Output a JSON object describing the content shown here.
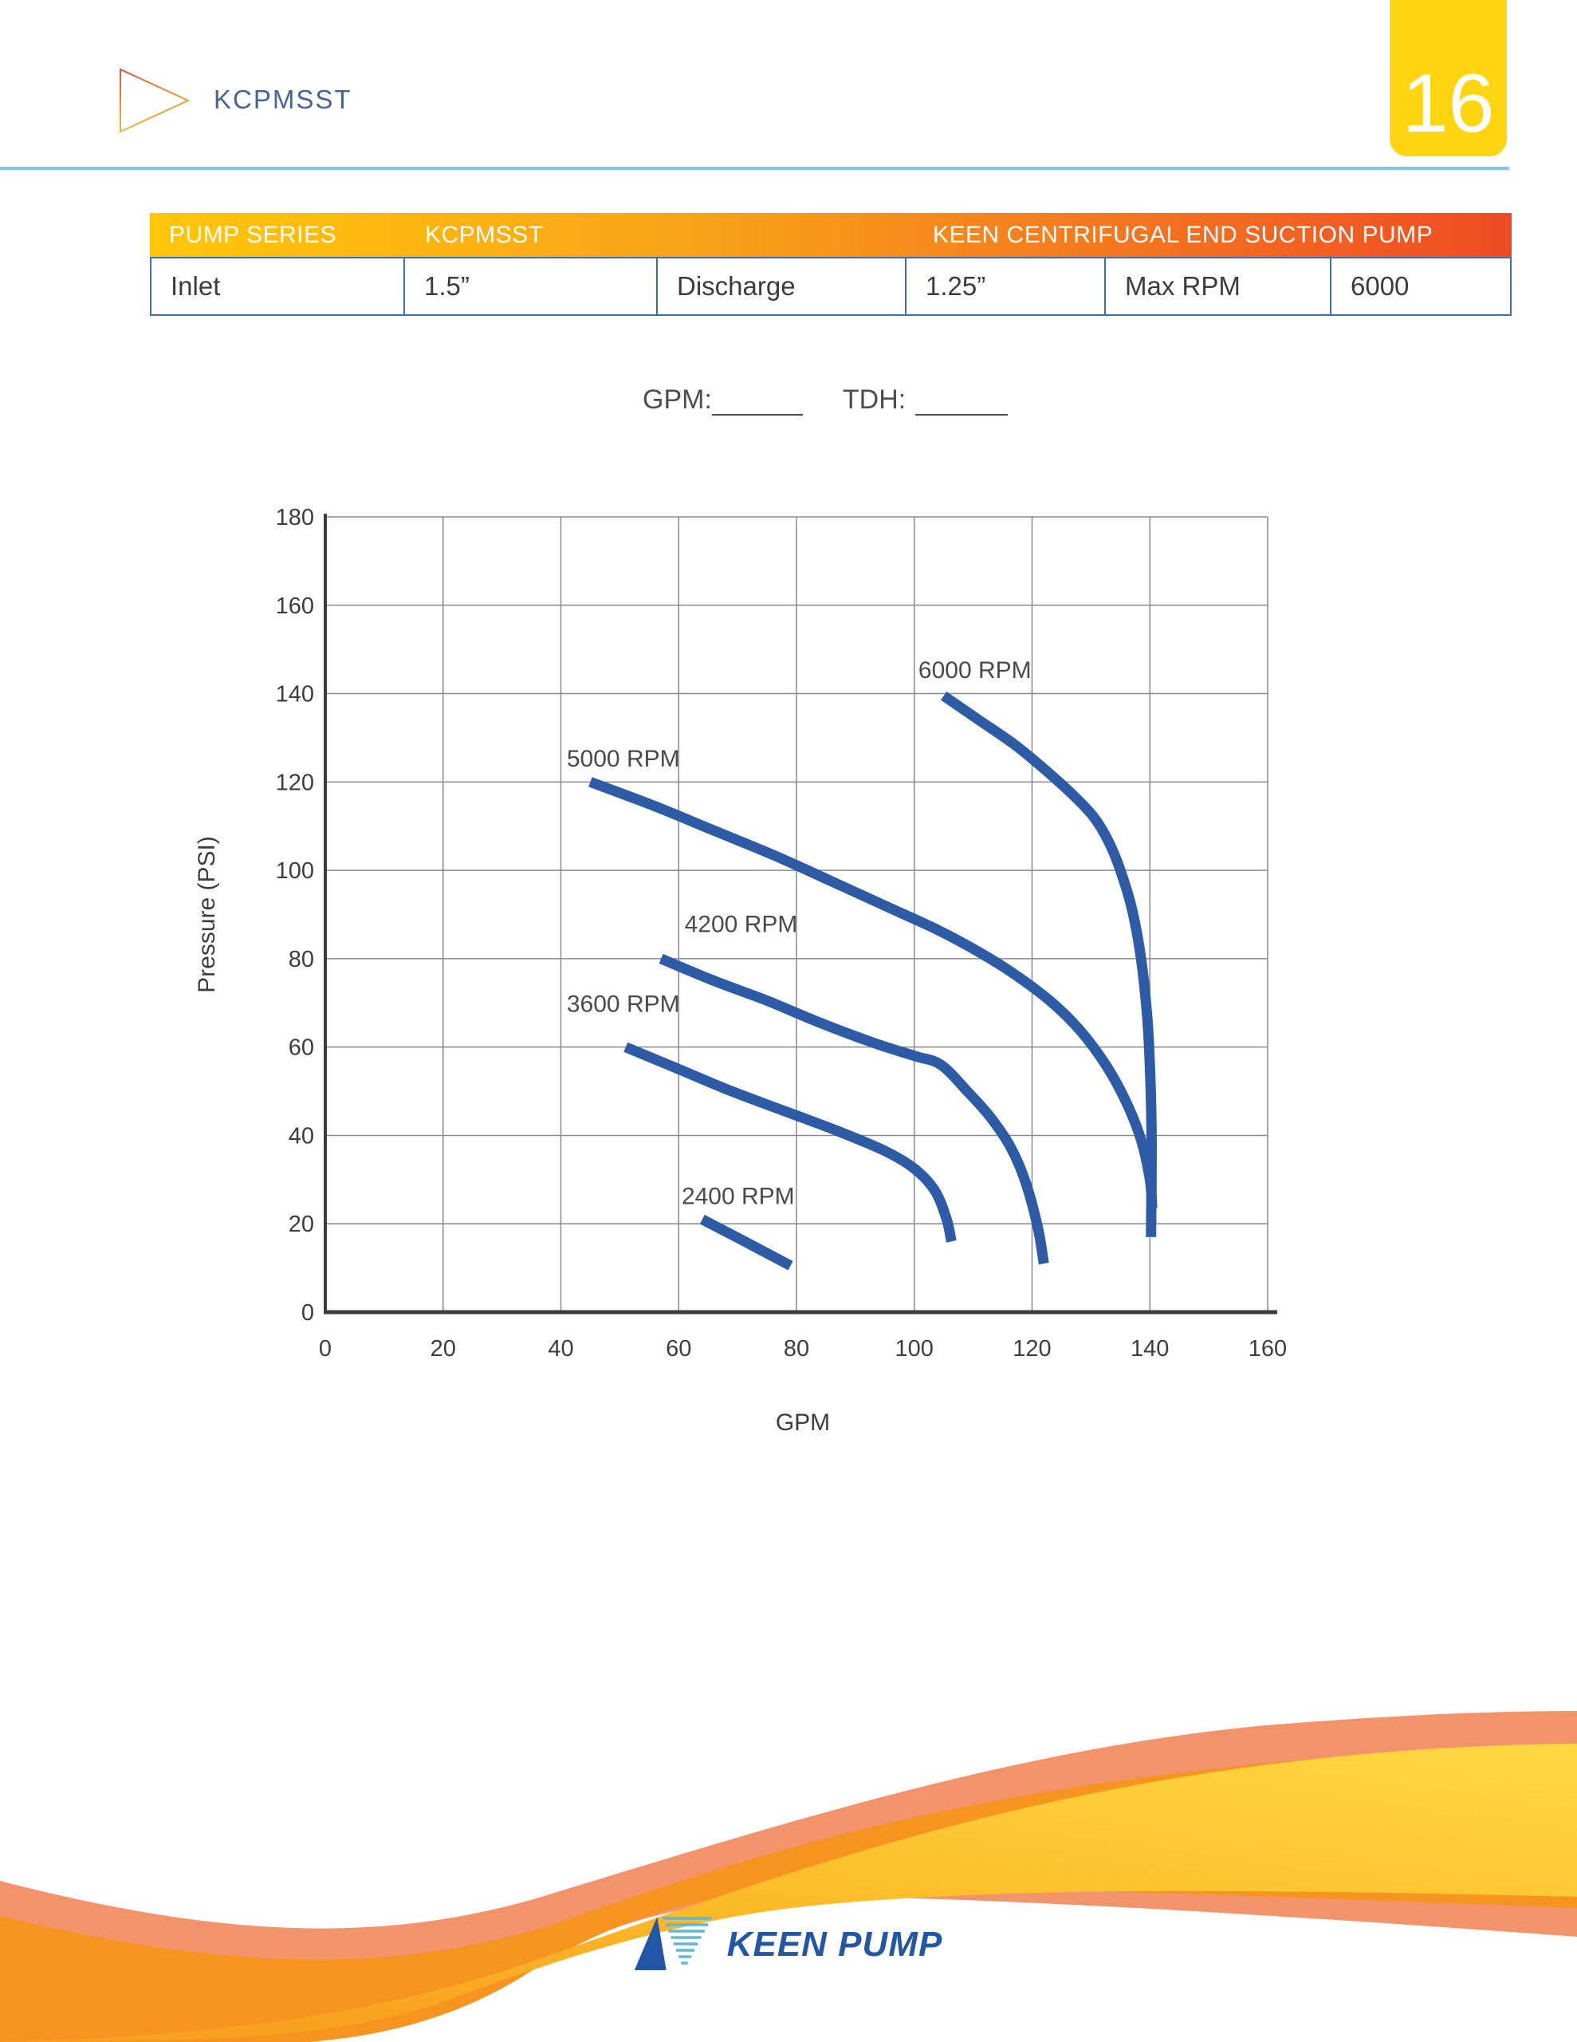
{
  "page": {
    "number": "16"
  },
  "header": {
    "title": "KCPMSST",
    "logo": "striped-triangle-right"
  },
  "spec_table": {
    "header": {
      "col1": "PUMP SERIES",
      "col2": "KCPMSST",
      "col3": "KEEN CENTRIFUGAL END SUCTION PUMP"
    },
    "row": [
      "Inlet",
      "1.5”",
      "Discharge",
      "1.25”",
      "Max RPM",
      "6000"
    ]
  },
  "fill_in": {
    "gpm_label": "GPM:",
    "tdh_label": "TDH:"
  },
  "chart_data": {
    "type": "line",
    "title": "",
    "xlabel": "GPM",
    "ylabel": "Pressure (PSI)",
    "xlim": [
      0,
      160
    ],
    "ylim": [
      0,
      180
    ],
    "x_ticks": [
      0,
      20,
      40,
      60,
      80,
      100,
      120,
      140,
      160
    ],
    "y_ticks": [
      0,
      20,
      40,
      60,
      80,
      100,
      120,
      140,
      160,
      180
    ],
    "grid": true,
    "legend_position": "inline-labels",
    "curve_color": "#2e5ba6",
    "series": [
      {
        "name": "2400 RPM",
        "label_pos": [
          60.5,
          24.5
        ],
        "points": [
          [
            64,
            21
          ],
          [
            71.5,
            15.8
          ],
          [
            79,
            10.5
          ]
        ]
      },
      {
        "name": "3600 RPM",
        "label_pos": [
          41,
          68
        ],
        "points": [
          [
            51,
            60
          ],
          [
            60,
            55
          ],
          [
            69,
            50
          ],
          [
            78,
            45.5
          ],
          [
            87,
            41
          ],
          [
            95,
            36.5
          ],
          [
            100,
            32.5
          ],
          [
            103.5,
            27.5
          ],
          [
            105.5,
            21
          ],
          [
            106.3,
            16
          ]
        ]
      },
      {
        "name": "4200 RPM",
        "label_pos": [
          61,
          86
        ],
        "points": [
          [
            57,
            80
          ],
          [
            66,
            75
          ],
          [
            75,
            70.5
          ],
          [
            84,
            65.5
          ],
          [
            93,
            61
          ],
          [
            100,
            58
          ],
          [
            104.5,
            56
          ],
          [
            109,
            50
          ],
          [
            113,
            44
          ],
          [
            116.5,
            37
          ],
          [
            119,
            29
          ],
          [
            121,
            19
          ],
          [
            122,
            11
          ]
        ]
      },
      {
        "name": "5000 RPM",
        "label_pos": [
          41,
          123.5
        ],
        "points": [
          [
            45,
            120
          ],
          [
            56,
            114.5
          ],
          [
            66,
            109
          ],
          [
            76,
            103.5
          ],
          [
            86,
            97.5
          ],
          [
            95,
            92
          ],
          [
            104,
            86.5
          ],
          [
            111,
            81.5
          ],
          [
            117,
            76.5
          ],
          [
            123,
            70.5
          ],
          [
            128,
            64
          ],
          [
            132.5,
            56
          ],
          [
            136,
            47.5
          ],
          [
            138.5,
            39
          ],
          [
            140,
            30
          ],
          [
            140.4,
            23.5
          ]
        ]
      },
      {
        "name": "6000 RPM",
        "label_pos": [
          100.7,
          143.5
        ],
        "points": [
          [
            105,
            139.5
          ],
          [
            111,
            134
          ],
          [
            117,
            128.5
          ],
          [
            122,
            123
          ],
          [
            127,
            117
          ],
          [
            130.5,
            112
          ],
          [
            133,
            106.5
          ],
          [
            135,
            100
          ],
          [
            137,
            91
          ],
          [
            138.5,
            80
          ],
          [
            139.6,
            66
          ],
          [
            140.1,
            52
          ],
          [
            140.3,
            38
          ],
          [
            140.2,
            17
          ]
        ]
      }
    ]
  },
  "footer": {
    "brand": "KEEN PUMP"
  },
  "colors": {
    "accent_teal": "#7bcbe4",
    "tab_yellow": "#ffd512",
    "table_gradient": [
      "#ffc60a",
      "#f9a518",
      "#ee4b24"
    ],
    "table_border": "#3f6db5",
    "curve_blue": "#2e5ba6",
    "grid_gray": "#8a8a8a",
    "axis_dark": "#3c3c3c",
    "brand_blue": "#2356a5",
    "wave_salmon": "#f2936c",
    "wave_orange": "#f79420",
    "wave_yellow": "#ffd843"
  }
}
